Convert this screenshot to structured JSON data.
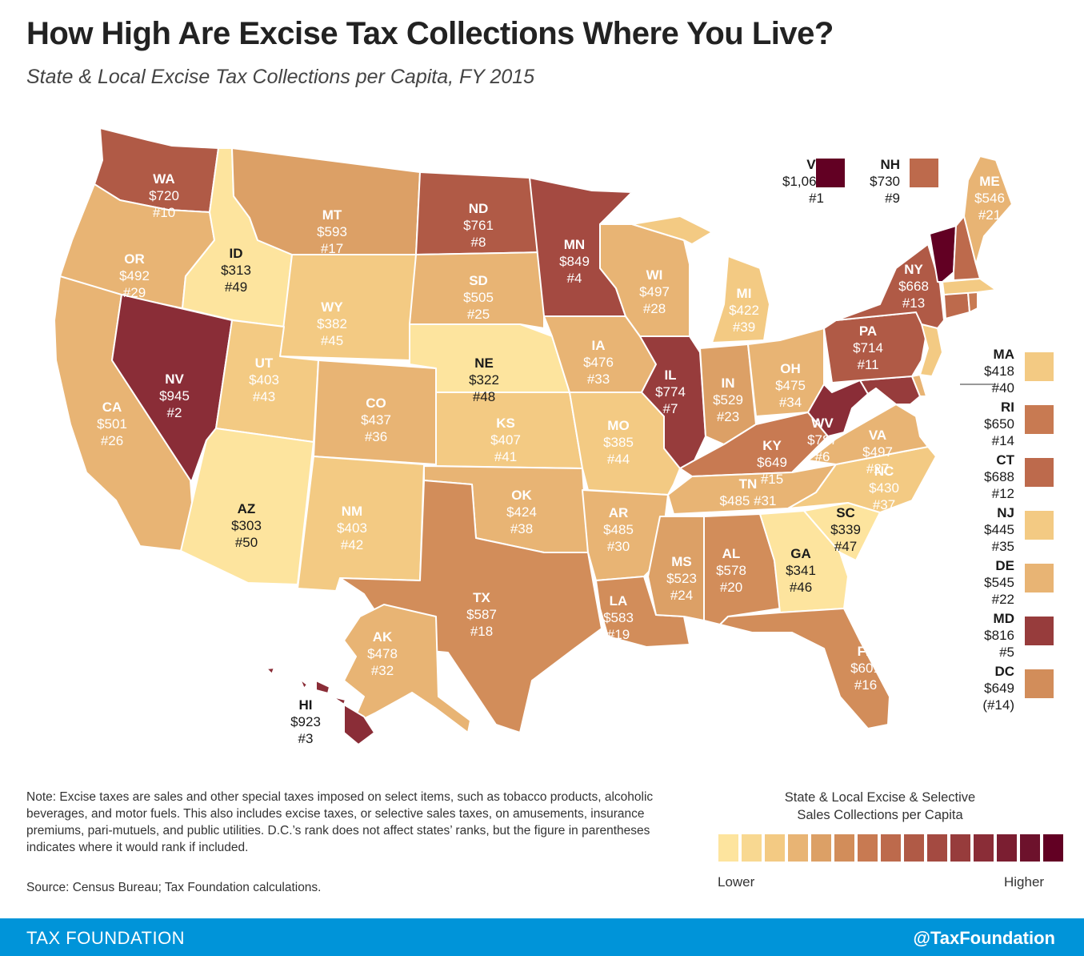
{
  "title": "How High Are Excise Tax Collections Where You Live?",
  "subtitle": "State & Local Excise Tax Collections per Capita, FY 2015",
  "colors": {
    "c1": "#fde49e",
    "c2": "#f8d891",
    "c3": "#f3ca83",
    "c4": "#e8b474",
    "c5": "#dca066",
    "c6": "#d28d5a",
    "c7": "#c87a52",
    "c8": "#bd6a4c",
    "c9": "#b05a46",
    "c10": "#a44a41",
    "c11": "#973c3c",
    "c12": "#8a2d37",
    "c13": "#7b1e31",
    "c14": "#6d122c",
    "c15": "#620023",
    "state_border": "#ffffff",
    "footer": "#0094d9"
  },
  "states": [
    {
      "abbr": "WA",
      "value": "$720",
      "rank": "#10"
    },
    {
      "abbr": "OR",
      "value": "$492",
      "rank": "#29"
    },
    {
      "abbr": "CA",
      "value": "$501",
      "rank": "#26"
    },
    {
      "abbr": "NV",
      "value": "$945",
      "rank": "#2"
    },
    {
      "abbr": "ID",
      "value": "$313",
      "rank": "#49"
    },
    {
      "abbr": "MT",
      "value": "$593",
      "rank": "#17"
    },
    {
      "abbr": "WY",
      "value": "$382",
      "rank": "#45"
    },
    {
      "abbr": "UT",
      "value": "$403",
      "rank": "#43"
    },
    {
      "abbr": "AZ",
      "value": "$303",
      "rank": "#50"
    },
    {
      "abbr": "CO",
      "value": "$437",
      "rank": "#36"
    },
    {
      "abbr": "NM",
      "value": "$403",
      "rank": "#42"
    },
    {
      "abbr": "ND",
      "value": "$761",
      "rank": "#8"
    },
    {
      "abbr": "SD",
      "value": "$505",
      "rank": "#25"
    },
    {
      "abbr": "NE",
      "value": "$322",
      "rank": "#48"
    },
    {
      "abbr": "KS",
      "value": "$407",
      "rank": "#41"
    },
    {
      "abbr": "OK",
      "value": "$424",
      "rank": "#38"
    },
    {
      "abbr": "TX",
      "value": "$587",
      "rank": "#18"
    },
    {
      "abbr": "MN",
      "value": "$849",
      "rank": "#4"
    },
    {
      "abbr": "IA",
      "value": "$476",
      "rank": "#33"
    },
    {
      "abbr": "MO",
      "value": "$385",
      "rank": "#44"
    },
    {
      "abbr": "AR",
      "value": "$485",
      "rank": "#30"
    },
    {
      "abbr": "LA",
      "value": "$583",
      "rank": "#19"
    },
    {
      "abbr": "WI",
      "value": "$497",
      "rank": "#28"
    },
    {
      "abbr": "IL",
      "value": "$774",
      "rank": "#7"
    },
    {
      "abbr": "MI",
      "value": "$422",
      "rank": "#39"
    },
    {
      "abbr": "IN",
      "value": "$529",
      "rank": "#23"
    },
    {
      "abbr": "OH",
      "value": "$475",
      "rank": "#34"
    },
    {
      "abbr": "KY",
      "value": "$649",
      "rank": "#15"
    },
    {
      "abbr": "TN",
      "value": "$485",
      "rank": "#31"
    },
    {
      "abbr": "MS",
      "value": "$523",
      "rank": "#24"
    },
    {
      "abbr": "AL",
      "value": "$578",
      "rank": "#20"
    },
    {
      "abbr": "GA",
      "value": "$341",
      "rank": "#46"
    },
    {
      "abbr": "FL",
      "value": "$601",
      "rank": "#16"
    },
    {
      "abbr": "SC",
      "value": "$339",
      "rank": "#47"
    },
    {
      "abbr": "NC",
      "value": "$430",
      "rank": "#37"
    },
    {
      "abbr": "VA",
      "value": "$497",
      "rank": "#27"
    },
    {
      "abbr": "WV",
      "value": "$787",
      "rank": "#6"
    },
    {
      "abbr": "PA",
      "value": "$714",
      "rank": "#11"
    },
    {
      "abbr": "NY",
      "value": "$668",
      "rank": "#13"
    },
    {
      "abbr": "ME",
      "value": "$546",
      "rank": "#21"
    },
    {
      "abbr": "AK",
      "value": "$478",
      "rank": "#32"
    },
    {
      "abbr": "HI",
      "value": "$923",
      "rank": "#3"
    }
  ],
  "callouts": [
    {
      "abbr": "VT",
      "value": "$1,068",
      "rank": "#1"
    },
    {
      "abbr": "NH",
      "value": "$730",
      "rank": "#9"
    },
    {
      "abbr": "MA",
      "value": "$418",
      "rank": "#40"
    },
    {
      "abbr": "RI",
      "value": "$650",
      "rank": "#14"
    },
    {
      "abbr": "CT",
      "value": "$688",
      "rank": "#12"
    },
    {
      "abbr": "NJ",
      "value": "$445",
      "rank": "#35"
    },
    {
      "abbr": "DE",
      "value": "$545",
      "rank": "#22"
    },
    {
      "abbr": "MD",
      "value": "$816",
      "rank": "#5"
    },
    {
      "abbr": "DC",
      "value": "$649",
      "rank": "(#14)"
    }
  ],
  "note": "Note: Excise taxes are sales and other special taxes imposed on select items, such as tobacco products, alcoholic beverages, and motor fuels. This also includes excise taxes, or selective sales taxes, on amusements, insurance premiums, pari-mutuels, and public utilities. D.C.’s rank does not affect states’ ranks, but the figure in parentheses indicates where it would rank if included.",
  "source": "Source: Census Bureau; Tax Foundation calculations.",
  "legend": {
    "title_line1": "State & Local Excise & Selective",
    "title_line2": "Sales Collections per Capita",
    "low": "Lower",
    "high": "Higher"
  },
  "footer": {
    "left": "TAX FOUNDATION",
    "right": "@TaxFoundation"
  }
}
